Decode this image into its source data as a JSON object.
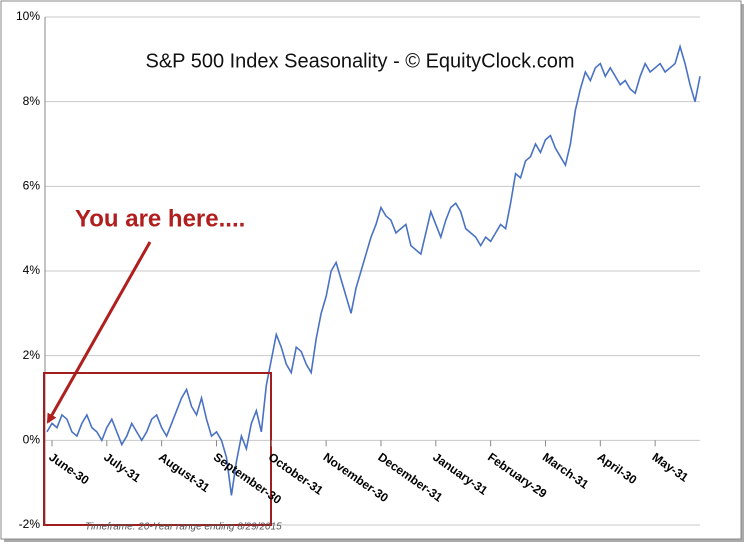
{
  "chart_data": {
    "type": "line",
    "title": "S&P 500 Index Seasonality - © EquityClock.com",
    "annotation": "You are here....",
    "footnote": "Timeframe: 20-Year range ending 8/29/2015",
    "categories": [
      null,
      "June-30",
      null,
      null,
      null,
      null,
      null,
      null,
      null,
      null,
      null,
      null,
      "July-31",
      null,
      null,
      null,
      null,
      null,
      null,
      null,
      null,
      null,
      null,
      "August-31",
      null,
      null,
      null,
      null,
      null,
      null,
      null,
      null,
      null,
      null,
      "September-30",
      null,
      null,
      null,
      null,
      null,
      null,
      null,
      null,
      null,
      null,
      "October-31",
      null,
      null,
      null,
      null,
      null,
      null,
      null,
      null,
      null,
      null,
      "November-30",
      null,
      null,
      null,
      null,
      null,
      null,
      null,
      null,
      null,
      null,
      "December-31",
      null,
      null,
      null,
      null,
      null,
      null,
      null,
      null,
      null,
      null,
      "January-31",
      null,
      null,
      null,
      null,
      null,
      null,
      null,
      null,
      null,
      null,
      "February-29",
      null,
      null,
      null,
      null,
      null,
      null,
      null,
      null,
      null,
      null,
      "March-31",
      null,
      null,
      null,
      null,
      null,
      null,
      null,
      null,
      null,
      null,
      "April-30",
      null,
      null,
      null,
      null,
      null,
      null,
      null,
      null,
      null,
      null,
      "May-31",
      null,
      null,
      null,
      null,
      null,
      null,
      null,
      null,
      null
    ],
    "series": [
      {
        "color": "#4a72c4",
        "values": [
          0.2,
          0.4,
          0.3,
          0.6,
          0.5,
          0.2,
          0.1,
          0.4,
          0.6,
          0.3,
          0.2,
          0.0,
          0.3,
          0.5,
          0.2,
          -0.1,
          0.1,
          0.4,
          0.2,
          0.0,
          0.2,
          0.5,
          0.6,
          0.3,
          0.1,
          0.4,
          0.7,
          1.0,
          1.2,
          0.8,
          0.6,
          1.0,
          0.5,
          0.1,
          0.2,
          0.0,
          -0.4,
          -1.3,
          -0.5,
          0.1,
          -0.2,
          0.4,
          0.7,
          0.2,
          1.3,
          1.9,
          2.5,
          2.2,
          1.8,
          1.6,
          2.2,
          2.1,
          1.8,
          1.6,
          2.4,
          3.0,
          3.4,
          4.0,
          4.2,
          3.8,
          3.4,
          3.0,
          3.6,
          4.0,
          4.4,
          4.8,
          5.1,
          5.5,
          5.3,
          5.2,
          4.9,
          5.0,
          5.1,
          4.6,
          4.5,
          4.4,
          4.9,
          5.4,
          5.1,
          4.8,
          5.2,
          5.5,
          5.6,
          5.4,
          5.0,
          4.9,
          4.8,
          4.6,
          4.8,
          4.7,
          4.9,
          5.1,
          5.0,
          5.6,
          6.3,
          6.2,
          6.6,
          6.7,
          7.0,
          6.8,
          7.1,
          7.2,
          6.9,
          6.7,
          6.5,
          7.0,
          7.8,
          8.3,
          8.7,
          8.5,
          8.8,
          8.9,
          8.6,
          8.8,
          8.6,
          8.4,
          8.5,
          8.3,
          8.2,
          8.6,
          8.9,
          8.7,
          8.8,
          8.9,
          8.7,
          8.8,
          8.9,
          9.3,
          8.9,
          8.4,
          8.0,
          8.6
        ]
      }
    ],
    "ylim": [
      -2,
      10
    ],
    "yticks": [
      {
        "value": -2,
        "label": "-2%"
      },
      {
        "value": 0,
        "label": "0%"
      },
      {
        "value": 2,
        "label": "2%"
      },
      {
        "value": 4,
        "label": "4%"
      },
      {
        "value": 6,
        "label": "6%"
      },
      {
        "value": 8,
        "label": "8%"
      },
      {
        "value": 10,
        "label": "10%"
      }
    ],
    "grid": true
  }
}
